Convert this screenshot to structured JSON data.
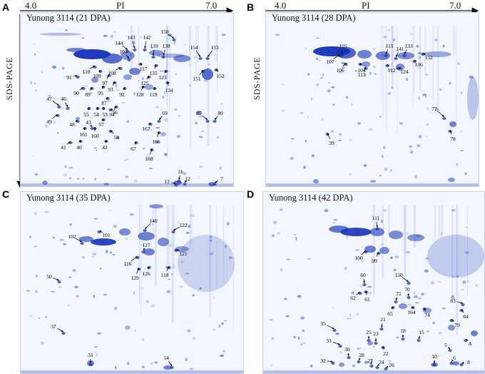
{
  "figure": {
    "axis_pi_left": "4.0",
    "axis_pi_label": "PI",
    "axis_pi_right": "7.0",
    "axis_vertical_label": "SDS-PAGE",
    "colors": {
      "gel_bg": "#f4f6fd",
      "spot_dark": "#1432b8",
      "spot_mid": "#3a5ad6",
      "arrow": "#111111"
    }
  },
  "panels": [
    {
      "letter": "A",
      "title": "Yunong 3114 (21 DPA)",
      "spots": [
        "143",
        "142",
        "158",
        "144",
        "139",
        "138",
        "103",
        "154",
        "153",
        "110",
        "108",
        "109",
        "97",
        "93",
        "117",
        "135",
        "123",
        "125",
        "134",
        "151",
        "152",
        "91",
        "90",
        "89",
        "95",
        "92",
        "128",
        "119",
        "87",
        "94",
        "47",
        "46",
        "49",
        "55",
        "54",
        "53",
        "56",
        "43",
        "48",
        "161",
        "160",
        "57",
        "58",
        "69",
        "167",
        "85",
        "80",
        "41",
        "40",
        "42",
        "166",
        "67",
        "168",
        "11",
        "13",
        "12",
        "7"
      ]
    },
    {
      "letter": "B",
      "title": "Yunong 3114 (28 DPA)",
      "spots": [
        "105",
        "115",
        "141",
        "133",
        "132",
        "107",
        "106",
        "104",
        "112",
        "136",
        "113",
        "124",
        "77",
        "78",
        "39"
      ]
    },
    {
      "letter": "C",
      "title": "Yunong 3114 (35 DPA)",
      "spots": [
        "140",
        "101",
        "102",
        "122",
        "127",
        "121",
        "116",
        "126",
        "118",
        "129",
        "50",
        "37",
        "31",
        "14"
      ]
    },
    {
      "letter": "D",
      "title": "Yunong 3114 (42 DPA)",
      "spots": [
        "111",
        "100",
        "99",
        "60",
        "130",
        "70",
        "62",
        "61",
        "71",
        "83",
        "65",
        "164",
        "74",
        "84",
        "21",
        "79",
        "35",
        "18",
        "15",
        "25",
        "23",
        "33",
        "30",
        "22",
        "5",
        "A",
        "28",
        "27",
        "24",
        "26",
        "32",
        "10",
        "6",
        "8"
      ]
    }
  ]
}
